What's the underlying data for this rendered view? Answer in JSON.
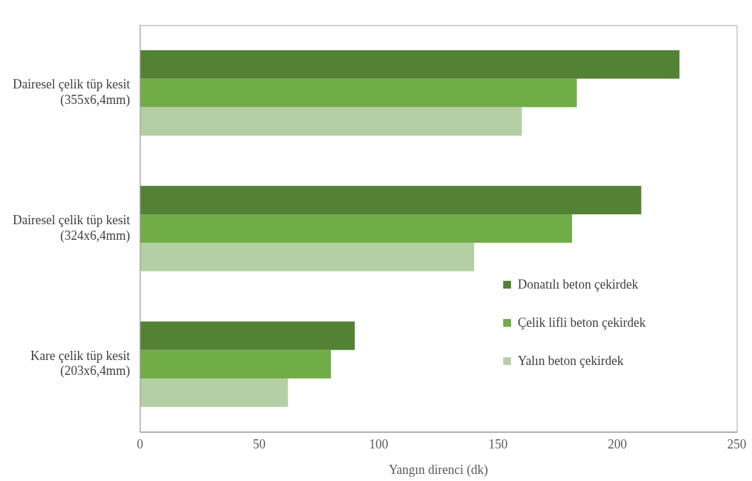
{
  "chart_data": {
    "type": "bar",
    "orientation": "horizontal",
    "xlabel": "Yangın direnci (dk)",
    "categories": [
      "Dairesel çelik tüp kesit (355x6,4mm)",
      "Dairesel çelik tüp kesit (324x6,4mm)",
      "Kare çelik tüp kesit (203x6,4mm)"
    ],
    "series": [
      {
        "name": "Donatılı beton çekirdek",
        "color": "#548235",
        "values": [
          226,
          210,
          90
        ]
      },
      {
        "name": "Çelik lifli beton çekirdek",
        "color": "#70ad47",
        "values": [
          183,
          181,
          80
        ]
      },
      {
        "name": "Yalın beton çekirdek",
        "color": "#b5cfa5",
        "values": [
          160,
          140,
          62
        ]
      }
    ],
    "xlim": [
      0,
      250
    ],
    "xticks": [
      0,
      50,
      100,
      150,
      200,
      250
    ],
    "grid": false,
    "legend": "right"
  }
}
